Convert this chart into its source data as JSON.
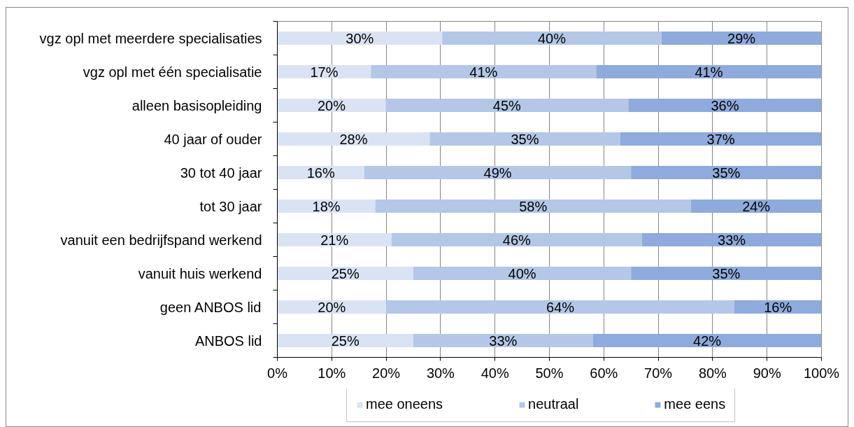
{
  "chart_data": {
    "type": "bar",
    "orientation": "horizontal",
    "stacked": true,
    "categories": [
      "vgz opl met meerdere specialisaties",
      "vgz opl met één specialisatie",
      "alleen basisopleiding",
      "40 jaar of ouder",
      "30 tot 40 jaar",
      "tot 30 jaar",
      "vanuit een bedrijfspand werkend",
      "vanuit huis werkend",
      "geen ANBOS lid",
      "ANBOS lid"
    ],
    "series": [
      {
        "name": "mee oneens",
        "color": "#dae3f3",
        "values": [
          30.3,
          17.2,
          19.9,
          28,
          16,
          18,
          21,
          25,
          20,
          25
        ],
        "value_labels": [
          "30%",
          "17%",
          "20%",
          "28%",
          "16%",
          "18%",
          "21%",
          "25%",
          "20%",
          "25%"
        ]
      },
      {
        "name": "neutraal",
        "color": "#b4c7e7",
        "values": [
          40.3,
          41.4,
          44.6,
          35,
          49,
          58,
          46,
          40,
          64,
          33
        ],
        "value_labels": [
          "40%",
          "41%",
          "45%",
          "35%",
          "49%",
          "58%",
          "46%",
          "40%",
          "64%",
          "33%"
        ]
      },
      {
        "name": "mee eens",
        "color": "#8faadc",
        "values": [
          29.4,
          41.4,
          35.5,
          37,
          35,
          24,
          33,
          35,
          16,
          42
        ],
        "value_labels": [
          "29%",
          "41%",
          "36%",
          "37%",
          "35%",
          "24%",
          "33%",
          "35%",
          "16%",
          "42%"
        ]
      }
    ],
    "xlim": [
      0,
      100
    ],
    "xticks": [
      {
        "value": 0,
        "label": "0%"
      },
      {
        "value": 10,
        "label": "10%"
      },
      {
        "value": 20,
        "label": "20%"
      },
      {
        "value": 30,
        "label": "30%"
      },
      {
        "value": 40,
        "label": "40%"
      },
      {
        "value": 50,
        "label": "50%"
      },
      {
        "value": 60,
        "label": "60%"
      },
      {
        "value": 70,
        "label": "70%"
      },
      {
        "value": 80,
        "label": "80%"
      },
      {
        "value": 90,
        "label": "90%"
      },
      {
        "value": 100,
        "label": "100%"
      }
    ],
    "grid": "x",
    "legend": "bottom"
  }
}
